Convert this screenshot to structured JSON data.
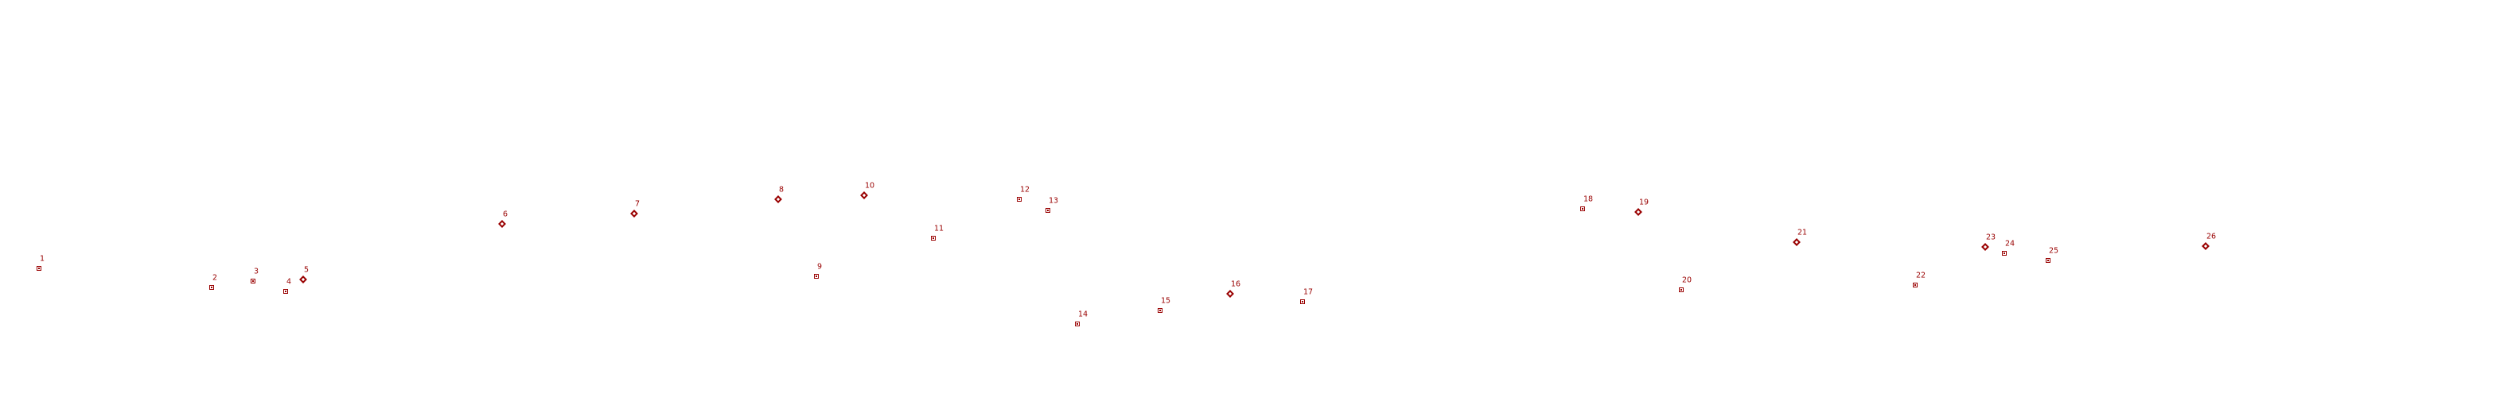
{
  "colors": {
    "marker": "#990000",
    "label": "#990000",
    "background": "#ffffff"
  },
  "chart_data": {
    "type": "scatter",
    "title": "",
    "xlabel": "",
    "ylabel": "",
    "axes_visible": false,
    "gridlines": false,
    "legend": null,
    "coordinate_system": "image pixels, origin top-left",
    "xlim": [
      0,
      3147
    ],
    "ylim": [
      0,
      500
    ],
    "series": [
      {
        "name": "small-square-markers",
        "marker": "square",
        "color": "#990000",
        "points": [
          {
            "label": "1",
            "x": 49,
            "y": 338
          },
          {
            "label": "2",
            "x": 266,
            "y": 362
          },
          {
            "label": "3",
            "x": 318,
            "y": 354
          },
          {
            "label": "4",
            "x": 359,
            "y": 367
          },
          {
            "label": "9",
            "x": 1026,
            "y": 348
          },
          {
            "label": "11",
            "x": 1173,
            "y": 300
          },
          {
            "label": "12",
            "x": 1281,
            "y": 251
          },
          {
            "label": "13",
            "x": 1317,
            "y": 265
          },
          {
            "label": "14",
            "x": 1354,
            "y": 408
          },
          {
            "label": "15",
            "x": 1458,
            "y": 391
          },
          {
            "label": "17",
            "x": 1637,
            "y": 380
          },
          {
            "label": "18",
            "x": 1989,
            "y": 263
          },
          {
            "label": "20",
            "x": 2113,
            "y": 365
          },
          {
            "label": "22",
            "x": 2407,
            "y": 359
          },
          {
            "label": "24",
            "x": 2519,
            "y": 319
          },
          {
            "label": "25",
            "x": 2574,
            "y": 328
          }
        ]
      },
      {
        "name": "diamond-markers",
        "marker": "diamond",
        "color": "#990000",
        "points": [
          {
            "label": "5",
            "x": 381,
            "y": 352
          },
          {
            "label": "6",
            "x": 631,
            "y": 282
          },
          {
            "label": "7",
            "x": 797,
            "y": 269
          },
          {
            "label": "8",
            "x": 978,
            "y": 251
          },
          {
            "label": "10",
            "x": 1086,
            "y": 246
          },
          {
            "label": "16",
            "x": 1546,
            "y": 370
          },
          {
            "label": "19",
            "x": 2059,
            "y": 267
          },
          {
            "label": "21",
            "x": 2258,
            "y": 305
          },
          {
            "label": "23",
            "x": 2495,
            "y": 311
          },
          {
            "label": "26",
            "x": 2772,
            "y": 310
          }
        ]
      }
    ]
  }
}
